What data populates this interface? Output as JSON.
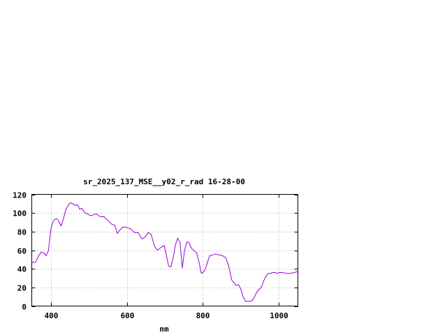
{
  "chart_data": {
    "type": "line",
    "title": "sr_2025_137_MSE__y02_r_rad 16-28-00",
    "xlabel": "nm",
    "ylabel": "",
    "xlim": [
      350,
      1050
    ],
    "ylim": [
      0,
      120
    ],
    "xticks": [
      400,
      600,
      800,
      1000
    ],
    "yticks": [
      0,
      20,
      40,
      60,
      80,
      100,
      120
    ],
    "grid": true,
    "line_color": "#9400d3",
    "series": [
      {
        "x": [
          350,
          360,
          368,
          375,
          382,
          388,
          394,
          400,
          405,
          410,
          415,
          420,
          427,
          432,
          440,
          447,
          452,
          458,
          464,
          470,
          476,
          482,
          490,
          497,
          505,
          512,
          520,
          530,
          540,
          550,
          560,
          568,
          575,
          582,
          590,
          596,
          602,
          610,
          620,
          630,
          640,
          648,
          656,
          664,
          672,
          680,
          690,
          698,
          704,
          710,
          716,
          722,
          728,
          734,
          740,
          746,
          752,
          758,
          764,
          770,
          778,
          784,
          790,
          796,
          800,
          806,
          812,
          818,
          826,
          834,
          840,
          846,
          852,
          860,
          868,
          876,
          882,
          888,
          894,
          900,
          906,
          912,
          918,
          924,
          930,
          936,
          942,
          948,
          954,
          960,
          966,
          972,
          978,
          984,
          990,
          996,
          1000,
          1010,
          1020,
          1030,
          1040,
          1050
        ],
        "y": [
          47,
          47,
          54,
          58,
          57,
          54,
          60,
          82,
          90,
          93,
          94,
          92,
          86,
          92,
          104,
          109,
          111,
          110,
          108,
          109,
          104,
          105,
          100,
          99,
          97,
          98,
          99,
          96,
          96,
          92,
          88,
          87,
          78,
          82,
          85,
          85,
          84,
          83,
          79,
          79,
          72,
          74,
          79,
          77,
          65,
          60,
          63,
          65,
          55,
          43,
          42,
          52,
          66,
          73,
          68,
          41,
          60,
          69,
          68,
          62,
          59,
          57,
          47,
          35,
          36,
          39,
          47,
          54,
          55,
          56,
          55,
          55,
          54,
          52,
          43,
          28,
          25,
          22,
          23,
          18,
          10,
          5,
          5,
          5,
          6,
          10,
          15,
          18,
          20,
          27,
          32,
          35,
          35,
          36,
          36,
          35,
          36,
          36,
          35,
          35,
          36,
          37
        ]
      }
    ]
  }
}
